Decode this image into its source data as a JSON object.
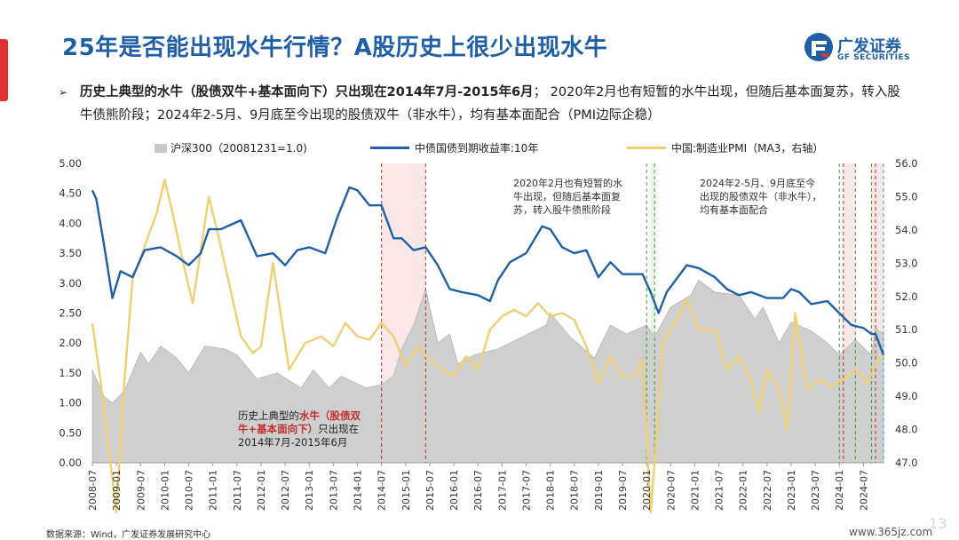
{
  "title": "25年是否能出现水牛行情？A股历史上很少出现水牛",
  "logo": {
    "cn": "广发证券",
    "en": "GF SECURITIES"
  },
  "bullet": {
    "arrow": "➢",
    "bold": "历史上典型的水牛（股债双牛+基本面向下）只出现在2014年7月-2015年6月",
    "normal": "； 2020年2月也有短暂的水牛出现，但随后基本面复苏，转入股牛债熊阶段；2024年2-5月、9月底至今出现的股债双牛（非水牛），均有基本面配合（PMI边际企稳）"
  },
  "legend": {
    "area": "沪深300（20081231=1.0)",
    "line_blue": "中债国债到期收益率:10年",
    "line_yellow": "中国:制造业PMI（MA3，右轴）"
  },
  "colors": {
    "title": "#1f5fa8",
    "accent": "#e0312f",
    "blue": "#1f5fa8",
    "yellow": "#f0cf72",
    "area": "#cfcfcf",
    "red": "#c0302e",
    "green": "#3a9b3a"
  },
  "annotations": {
    "a2020": [
      "2020年2月也有短暂的水",
      "牛出现，但随后基本面复",
      "苏，转入股牛债熊阶段"
    ],
    "a2024": [
      "2024年2-5月、9月底至今",
      "出现的股债双牛（非水牛），",
      "均有基本面配合"
    ],
    "a2014_l1_pre": "历史上典型的",
    "a2014_l1_red": "水牛（股债双",
    "a2014_l2_red": "牛+基本面向下）",
    "a2014_l2_post": "只出现在",
    "a2014_l3": "2014年7月-2015年6月"
  },
  "source": "数据来源：Wind，广发证券发展研究中心",
  "page_number": "13",
  "watermark": "www.365jz.com",
  "chart_data": {
    "type": "line",
    "x_range": [
      "2008-07",
      "2024-12"
    ],
    "x_ticks": [
      "2008-07",
      "2009-01",
      "2009-07",
      "2010-01",
      "2010-07",
      "2011-01",
      "2011-07",
      "2012-01",
      "2012-07",
      "2013-01",
      "2013-07",
      "2014-01",
      "2014-07",
      "2015-01",
      "2015-07",
      "2016-01",
      "2016-07",
      "2017-01",
      "2017-07",
      "2018-01",
      "2018-07",
      "2019-01",
      "2019-07",
      "2020-01",
      "2020-07",
      "2021-01",
      "2021-07",
      "2022-01",
      "2022-07",
      "2023-01",
      "2023-07",
      "2024-01",
      "2024-07"
    ],
    "y_left": {
      "ylim": [
        0,
        5
      ],
      "ticks": [
        "0.00",
        "0.50",
        "1.00",
        "1.50",
        "2.00",
        "2.50",
        "3.00",
        "3.50",
        "4.00",
        "4.50",
        "5.00"
      ]
    },
    "y_right": {
      "ylim": [
        47,
        56
      ],
      "ticks": [
        "47.0",
        "48.0",
        "49.0",
        "50.0",
        "51.0",
        "52.0",
        "53.0",
        "54.0",
        "55.0",
        "56.0"
      ]
    },
    "series": [
      {
        "name": "沪深300（20081231=1.0)",
        "axis": "left",
        "kind": "area",
        "points": [
          [
            "2008-07",
            1.55
          ],
          [
            "2008-10",
            1.1
          ],
          [
            "2008-12",
            1.0
          ],
          [
            "2009-03",
            1.2
          ],
          [
            "2009-07",
            1.85
          ],
          [
            "2009-09",
            1.65
          ],
          [
            "2009-12",
            1.95
          ],
          [
            "2010-04",
            1.75
          ],
          [
            "2010-07",
            1.5
          ],
          [
            "2010-11",
            1.95
          ],
          [
            "2011-04",
            1.9
          ],
          [
            "2011-07",
            1.8
          ],
          [
            "2011-12",
            1.4
          ],
          [
            "2012-05",
            1.5
          ],
          [
            "2012-11",
            1.25
          ],
          [
            "2013-02",
            1.55
          ],
          [
            "2013-06",
            1.25
          ],
          [
            "2013-09",
            1.45
          ],
          [
            "2014-03",
            1.25
          ],
          [
            "2014-07",
            1.3
          ],
          [
            "2014-10",
            1.45
          ],
          [
            "2014-12",
            1.9
          ],
          [
            "2015-03",
            2.3
          ],
          [
            "2015-06",
            2.9
          ],
          [
            "2015-09",
            2.0
          ],
          [
            "2015-12",
            2.15
          ],
          [
            "2016-02",
            1.65
          ],
          [
            "2016-06",
            1.8
          ],
          [
            "2016-12",
            1.9
          ],
          [
            "2017-06",
            2.1
          ],
          [
            "2017-12",
            2.3
          ],
          [
            "2018-01",
            2.5
          ],
          [
            "2018-06",
            2.1
          ],
          [
            "2018-12",
            1.75
          ],
          [
            "2019-04",
            2.3
          ],
          [
            "2019-08",
            2.15
          ],
          [
            "2020-01",
            2.3
          ],
          [
            "2020-03",
            2.1
          ],
          [
            "2020-07",
            2.6
          ],
          [
            "2020-12",
            2.8
          ],
          [
            "2021-02",
            3.05
          ],
          [
            "2021-06",
            2.85
          ],
          [
            "2021-12",
            2.8
          ],
          [
            "2022-04",
            2.4
          ],
          [
            "2022-06",
            2.6
          ],
          [
            "2022-10",
            2.0
          ],
          [
            "2023-01",
            2.35
          ],
          [
            "2023-06",
            2.2
          ],
          [
            "2023-10",
            2.0
          ],
          [
            "2024-01",
            1.8
          ],
          [
            "2024-05",
            2.05
          ],
          [
            "2024-09",
            1.8
          ],
          [
            "2024-10",
            2.25
          ],
          [
            "2024-12",
            2.15
          ]
        ]
      },
      {
        "name": "中债国债到期收益率:10年",
        "axis": "left",
        "kind": "line",
        "points": [
          [
            "2008-07",
            4.55
          ],
          [
            "2008-08",
            4.4
          ],
          [
            "2008-10",
            3.6
          ],
          [
            "2008-12",
            2.75
          ],
          [
            "2009-02",
            3.2
          ],
          [
            "2009-05",
            3.1
          ],
          [
            "2009-08",
            3.55
          ],
          [
            "2009-12",
            3.6
          ],
          [
            "2010-04",
            3.45
          ],
          [
            "2010-07",
            3.3
          ],
          [
            "2010-10",
            3.5
          ],
          [
            "2010-12",
            3.9
          ],
          [
            "2011-03",
            3.9
          ],
          [
            "2011-08",
            4.05
          ],
          [
            "2011-12",
            3.45
          ],
          [
            "2012-04",
            3.5
          ],
          [
            "2012-07",
            3.3
          ],
          [
            "2012-10",
            3.55
          ],
          [
            "2013-01",
            3.6
          ],
          [
            "2013-05",
            3.5
          ],
          [
            "2013-08",
            4.1
          ],
          [
            "2013-11",
            4.6
          ],
          [
            "2014-01",
            4.55
          ],
          [
            "2014-04",
            4.3
          ],
          [
            "2014-07",
            4.3
          ],
          [
            "2014-10",
            3.75
          ],
          [
            "2014-12",
            3.75
          ],
          [
            "2015-03",
            3.55
          ],
          [
            "2015-06",
            3.6
          ],
          [
            "2015-09",
            3.3
          ],
          [
            "2015-12",
            2.9
          ],
          [
            "2016-03",
            2.85
          ],
          [
            "2016-07",
            2.8
          ],
          [
            "2016-10",
            2.7
          ],
          [
            "2016-12",
            3.05
          ],
          [
            "2017-03",
            3.35
          ],
          [
            "2017-07",
            3.5
          ],
          [
            "2017-11",
            3.95
          ],
          [
            "2018-01",
            3.9
          ],
          [
            "2018-04",
            3.6
          ],
          [
            "2018-07",
            3.5
          ],
          [
            "2018-10",
            3.55
          ],
          [
            "2019-01",
            3.1
          ],
          [
            "2019-04",
            3.35
          ],
          [
            "2019-07",
            3.15
          ],
          [
            "2019-12",
            3.15
          ],
          [
            "2020-02",
            2.85
          ],
          [
            "2020-04",
            2.5
          ],
          [
            "2020-06",
            2.85
          ],
          [
            "2020-11",
            3.3
          ],
          [
            "2021-02",
            3.25
          ],
          [
            "2021-06",
            3.1
          ],
          [
            "2021-09",
            2.9
          ],
          [
            "2021-12",
            2.8
          ],
          [
            "2022-03",
            2.85
          ],
          [
            "2022-07",
            2.75
          ],
          [
            "2022-11",
            2.75
          ],
          [
            "2023-01",
            2.9
          ],
          [
            "2023-03",
            2.85
          ],
          [
            "2023-06",
            2.65
          ],
          [
            "2023-10",
            2.7
          ],
          [
            "2024-01",
            2.5
          ],
          [
            "2024-04",
            2.3
          ],
          [
            "2024-07",
            2.25
          ],
          [
            "2024-09",
            2.15
          ],
          [
            "2024-10",
            2.15
          ],
          [
            "2024-12",
            1.8
          ]
        ]
      },
      {
        "name": "中国:制造业PMI（MA3，右轴）",
        "axis": "right",
        "kind": "line",
        "points": [
          [
            "2008-07",
            51.2
          ],
          [
            "2008-09",
            49.5
          ],
          [
            "2008-11",
            47.5
          ],
          [
            "2009-01",
            45.5
          ],
          [
            "2009-03",
            49.5
          ],
          [
            "2009-05",
            52.5
          ],
          [
            "2009-08",
            53.5
          ],
          [
            "2009-11",
            54.5
          ],
          [
            "2010-01",
            55.5
          ],
          [
            "2010-03",
            54.5
          ],
          [
            "2010-06",
            52.8
          ],
          [
            "2010-08",
            51.8
          ],
          [
            "2010-12",
            55.0
          ],
          [
            "2011-03",
            53.5
          ],
          [
            "2011-08",
            50.8
          ],
          [
            "2011-11",
            50.3
          ],
          [
            "2012-01",
            50.5
          ],
          [
            "2012-04",
            53.0
          ],
          [
            "2012-08",
            49.8
          ],
          [
            "2012-12",
            50.6
          ],
          [
            "2013-04",
            50.8
          ],
          [
            "2013-07",
            50.5
          ],
          [
            "2013-10",
            51.2
          ],
          [
            "2014-01",
            50.8
          ],
          [
            "2014-04",
            50.7
          ],
          [
            "2014-07",
            51.2
          ],
          [
            "2014-10",
            50.8
          ],
          [
            "2015-01",
            49.9
          ],
          [
            "2015-04",
            50.5
          ],
          [
            "2015-07",
            50.1
          ],
          [
            "2015-10",
            49.8
          ],
          [
            "2016-01",
            49.6
          ],
          [
            "2016-04",
            50.2
          ],
          [
            "2016-07",
            49.8
          ],
          [
            "2016-10",
            51.0
          ],
          [
            "2017-01",
            51.4
          ],
          [
            "2017-04",
            51.6
          ],
          [
            "2017-07",
            51.4
          ],
          [
            "2017-10",
            51.8
          ],
          [
            "2018-01",
            51.4
          ],
          [
            "2018-04",
            51.5
          ],
          [
            "2018-07",
            51.3
          ],
          [
            "2018-10",
            50.5
          ],
          [
            "2019-01",
            49.4
          ],
          [
            "2019-04",
            50.2
          ],
          [
            "2019-07",
            49.6
          ],
          [
            "2019-10",
            49.6
          ],
          [
            "2019-12",
            50.1
          ],
          [
            "2020-02",
            45.5
          ],
          [
            "2020-03",
            47.0
          ],
          [
            "2020-05",
            50.6
          ],
          [
            "2020-09",
            51.4
          ],
          [
            "2020-11",
            51.9
          ],
          [
            "2021-02",
            51.0
          ],
          [
            "2021-06",
            51.0
          ],
          [
            "2021-09",
            49.8
          ],
          [
            "2021-12",
            50.2
          ],
          [
            "2022-03",
            49.5
          ],
          [
            "2022-05",
            48.5
          ],
          [
            "2022-07",
            49.8
          ],
          [
            "2022-10",
            49.2
          ],
          [
            "2022-12",
            48.0
          ],
          [
            "2023-02",
            51.5
          ],
          [
            "2023-05",
            49.2
          ],
          [
            "2023-08",
            49.5
          ],
          [
            "2023-11",
            49.3
          ],
          [
            "2024-02",
            49.5
          ],
          [
            "2024-05",
            49.8
          ],
          [
            "2024-08",
            49.4
          ],
          [
            "2024-11",
            50.2
          ],
          [
            "2024-12",
            50.2
          ]
        ]
      }
    ],
    "bands": [
      {
        "from": "2014-07",
        "to": "2015-06",
        "color": "red"
      },
      {
        "from": "2024-02",
        "to": "2024-05",
        "color": "red"
      },
      {
        "from": "2024-09",
        "to": "2024-12",
        "color": "red"
      },
      {
        "from": "2020-02",
        "to": "2020-03",
        "color": "green"
      }
    ],
    "vlines": [
      {
        "at": "2014-07",
        "color": "red"
      },
      {
        "at": "2015-06",
        "color": "red"
      },
      {
        "at": "2020-01",
        "color": "green"
      },
      {
        "at": "2020-03",
        "color": "green"
      },
      {
        "at": "2024-01",
        "color": "green"
      },
      {
        "at": "2024-02",
        "color": "red"
      },
      {
        "at": "2024-05",
        "color": "green"
      },
      {
        "at": "2024-09",
        "color": "green"
      },
      {
        "at": "2024-10",
        "color": "red"
      },
      {
        "at": "2024-12",
        "color": "teal"
      }
    ]
  }
}
